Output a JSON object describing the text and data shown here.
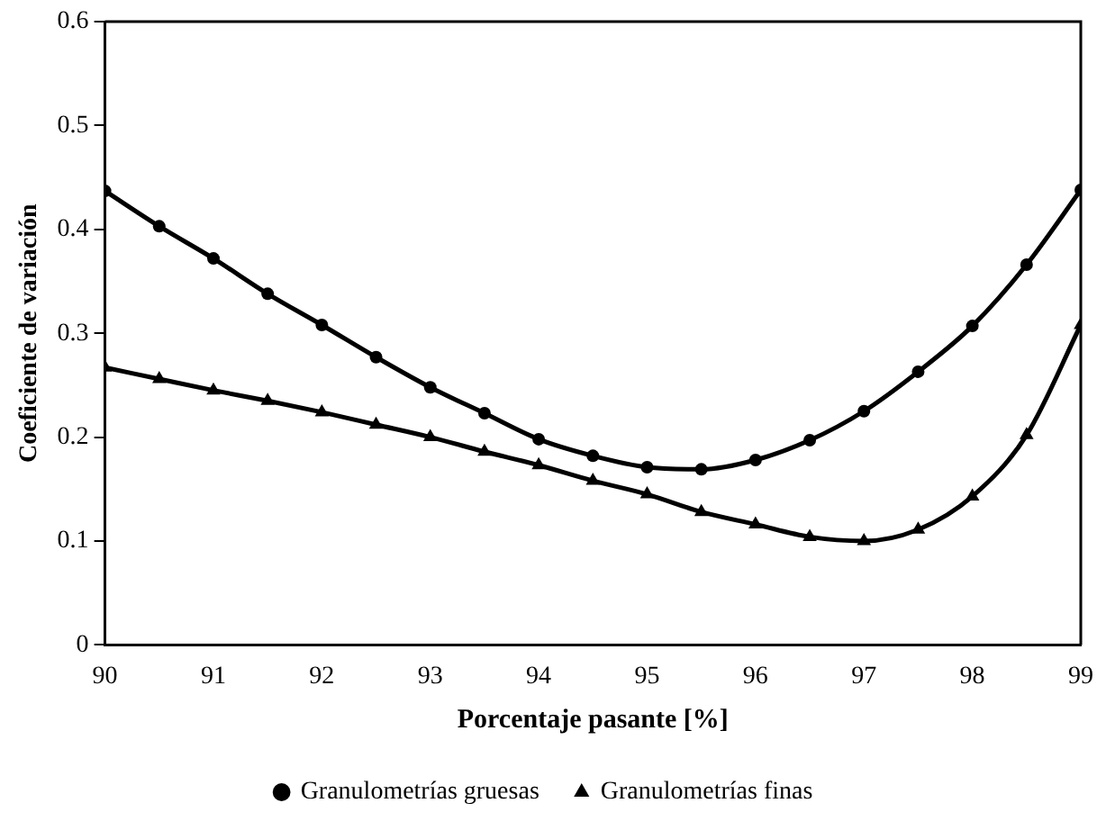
{
  "chart_data": {
    "type": "line",
    "xlabel": "Porcentaje pasante [%]",
    "ylabel": "Coeficiente de variación",
    "x": [
      90,
      90.5,
      91,
      91.5,
      92,
      92.5,
      93,
      93.5,
      94,
      94.5,
      95,
      95.5,
      96,
      96.5,
      97,
      97.5,
      98,
      98.5,
      99
    ],
    "series": [
      {
        "name": "Granulometrías gruesas",
        "color": "#000000",
        "marker": "circle",
        "values": [
          0.437,
          0.403,
          0.372,
          0.338,
          0.308,
          0.277,
          0.248,
          0.223,
          0.198,
          0.182,
          0.171,
          0.169,
          0.178,
          0.197,
          0.225,
          0.263,
          0.307,
          0.366,
          0.438
        ]
      },
      {
        "name": "Granulometrías finas",
        "color": "#000000",
        "marker": "triangle",
        "values": [
          0.267,
          0.256,
          0.245,
          0.235,
          0.224,
          0.212,
          0.2,
          0.186,
          0.173,
          0.158,
          0.145,
          0.128,
          0.116,
          0.104,
          0.1,
          0.111,
          0.143,
          0.202,
          0.308
        ]
      }
    ],
    "xlim": [
      90,
      99
    ],
    "xticks": [
      90,
      91,
      92,
      93,
      94,
      95,
      96,
      97,
      98,
      99
    ],
    "ylim": [
      0,
      0.6
    ],
    "yticks": [
      {
        "value": 0,
        "label": "0"
      },
      0.1,
      0.2,
      0.3,
      0.4,
      0.5,
      0.6
    ],
    "grid": false,
    "legend": "bottom",
    "line_style": "solid"
  }
}
